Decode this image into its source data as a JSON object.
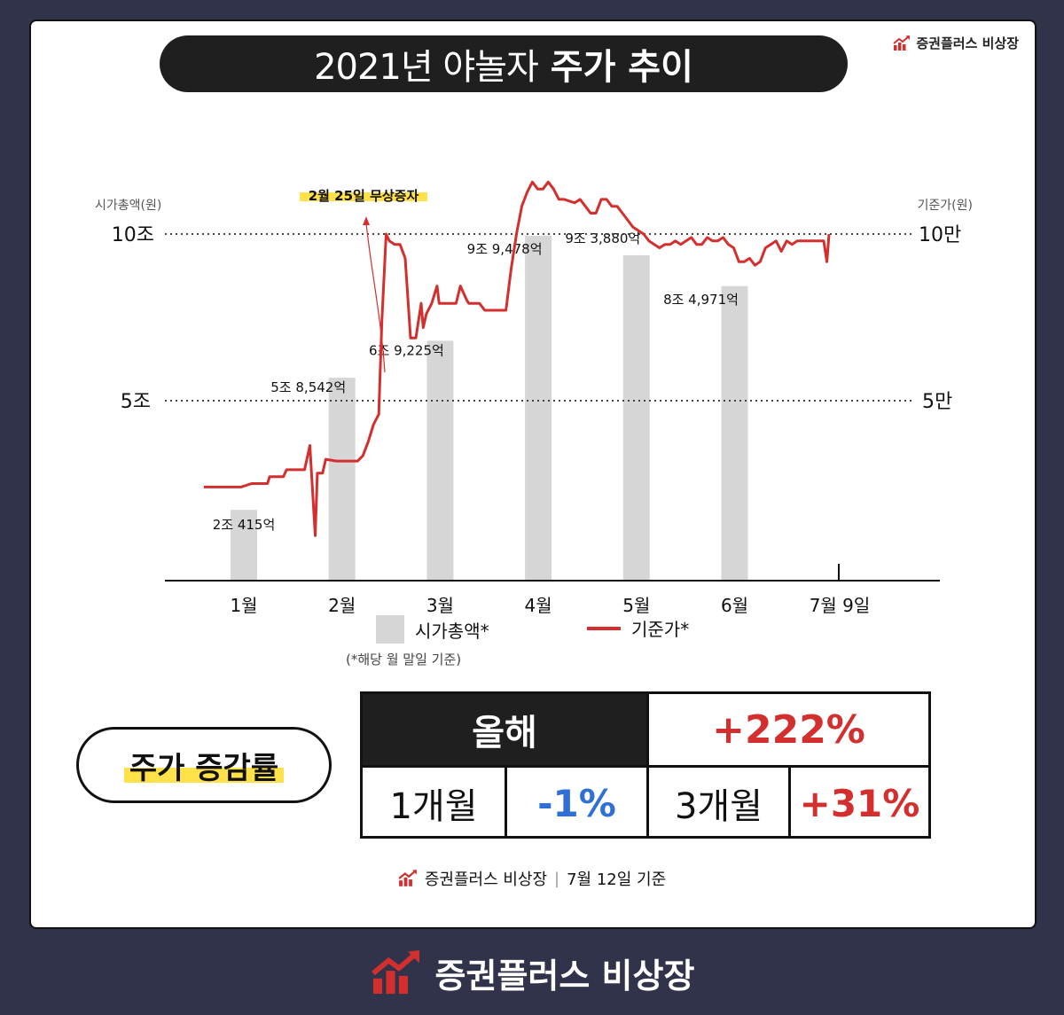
{
  "brand": {
    "name": "증권플러스 비상장",
    "logo_icon": "rising-chart-logo-icon",
    "accent": "#d32f2f"
  },
  "title": {
    "light": "2021년 야놀자",
    "bold": "주가 추이"
  },
  "chart_data": {
    "type": "bar+line",
    "left_axis_title": "시가총액(원)",
    "right_axis_title": "기준가(원)",
    "left_ticks": [
      {
        "value": 10,
        "label": "10조"
      },
      {
        "value": 5,
        "label": "5조"
      }
    ],
    "right_ticks": [
      {
        "value": 100000,
        "label": "10만"
      },
      {
        "value": 50000,
        "label": "5만"
      }
    ],
    "grid": "dotted horizontal at 5 and 10",
    "categories": [
      "1월",
      "2월",
      "3월",
      "4월",
      "5월",
      "6월",
      "7월 9일"
    ],
    "bars": {
      "name": "시가총액*",
      "unit": "조원",
      "color": "#d6d6d6",
      "values": [
        2.0415,
        5.8542,
        6.9225,
        9.9478,
        9.388,
        8.4971
      ],
      "labels": [
        "2조 415억",
        "5조 8,542억",
        "6조 9,225억",
        "9조 9,478억",
        "9조 3,880억",
        "8조 4,971억"
      ]
    },
    "line": {
      "name": "기준가*",
      "unit": "원",
      "color": "#d32f2f",
      "x": [
        0.0,
        0.35,
        0.45,
        0.6,
        0.62,
        0.75,
        0.78,
        0.95,
        1.0,
        1.05,
        1.07,
        1.12,
        1.15,
        1.25,
        1.3,
        1.45,
        1.5,
        1.55,
        1.6,
        1.65,
        1.68,
        1.72,
        1.75,
        1.8,
        1.85,
        1.9,
        1.95,
        1.97,
        2.0,
        2.05,
        2.07,
        2.1,
        2.15,
        2.2,
        2.22,
        2.3,
        2.38,
        2.42,
        2.48,
        2.5,
        2.55,
        2.6,
        2.65,
        2.7,
        2.75,
        2.8,
        2.85,
        2.9,
        2.95,
        3.0,
        3.05,
        3.1,
        3.15,
        3.2,
        3.25,
        3.3,
        3.35,
        3.4,
        3.5,
        3.55,
        3.6,
        3.65,
        3.7,
        3.75,
        3.8,
        3.85,
        3.9,
        3.95,
        4.0,
        4.05,
        4.1,
        4.15,
        4.2,
        4.25,
        4.3,
        4.35,
        4.4,
        4.45,
        4.5,
        4.55,
        4.6,
        4.65,
        4.7,
        4.75,
        4.8,
        4.85,
        4.9,
        4.95,
        5.0,
        5.05,
        5.1,
        5.15,
        5.2,
        5.25,
        5.3,
        5.35,
        5.4,
        5.45,
        5.5,
        5.55,
        5.6,
        5.65,
        5.7,
        5.75,
        5.8,
        5.85,
        5.88,
        5.9
      ],
      "y": [
        27000,
        27000,
        28000,
        28000,
        30000,
        30000,
        32000,
        32000,
        39000,
        13000,
        31000,
        31000,
        35000,
        34500,
        34500,
        34500,
        36000,
        40000,
        45000,
        48000,
        75000,
        100000,
        98000,
        97000,
        97000,
        93000,
        70000,
        70000,
        70000,
        80000,
        73000,
        77000,
        80000,
        85000,
        80000,
        80000,
        80000,
        85000,
        81000,
        80000,
        80000,
        80000,
        78000,
        78000,
        78000,
        78000,
        78000,
        90000,
        100000,
        108000,
        112000,
        115000,
        113000,
        113000,
        115000,
        113000,
        110000,
        110000,
        109000,
        110000,
        108000,
        106000,
        106000,
        110000,
        110000,
        108000,
        108000,
        106000,
        104000,
        102000,
        101000,
        100000,
        98000,
        97000,
        96000,
        97000,
        97000,
        98000,
        97000,
        98000,
        99000,
        97000,
        97000,
        99000,
        98000,
        98000,
        99000,
        97000,
        96000,
        92000,
        92000,
        93000,
        91000,
        92000,
        96000,
        97000,
        98000,
        95000,
        98000,
        97000,
        98000,
        98000,
        98000,
        98000,
        98000,
        98000,
        92000,
        100000
      ]
    },
    "annotation": "2월 25일 무상증자",
    "note": "(*해당 월 말일 기준)"
  },
  "rates": {
    "title": "주가 증감률",
    "year_label": "올해",
    "year_value": "+222%",
    "m1_label": "1개월",
    "m1_value": "-1%",
    "m3_label": "3개월",
    "m3_value": "+31%"
  },
  "source": {
    "name": "증권플러스 비상장",
    "date": "7월 12일 기준"
  }
}
